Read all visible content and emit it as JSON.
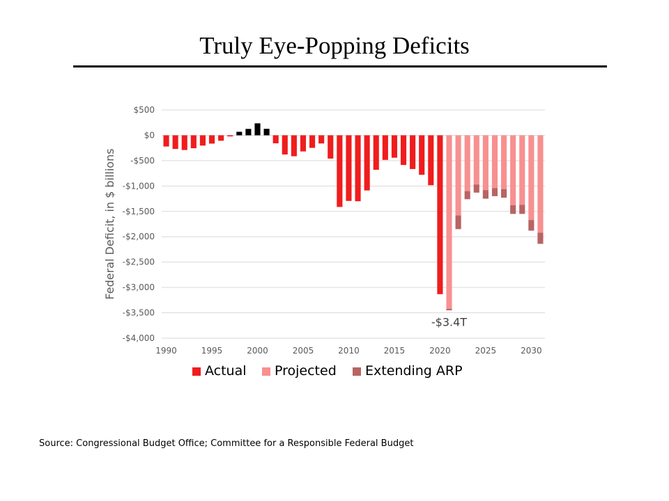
{
  "title": "Truly Eye-Popping Deficits",
  "source": "Source: Congressional Budget Office; Committee for a Responsible Federal Budget",
  "colors": {
    "actual": "#f01d1d",
    "surplus": "#000000",
    "projected": "#f89090",
    "extending_arp": "#b86464",
    "grid": "#d9d9d9",
    "axis_text": "#595959"
  },
  "chart_data": {
    "type": "bar",
    "stacked": true,
    "ylabel": "Federal Deficit, in $ billions",
    "ylim": [
      -4000,
      500
    ],
    "yticks": [
      500,
      0,
      -500,
      -1000,
      -1500,
      -2000,
      -2500,
      -3000,
      -3500,
      -4000
    ],
    "ytick_labels": [
      "$500",
      "$0",
      "-$500",
      "-$1,000",
      "-$1,500",
      "-$2,000",
      "-$2,500",
      "-$3,000",
      "-$3,500",
      "-$4,000"
    ],
    "xticks": [
      1990,
      1995,
      2000,
      2005,
      2010,
      2015,
      2020,
      2025,
      2030
    ],
    "x": [
      1990,
      1991,
      1992,
      1993,
      1994,
      1995,
      1996,
      1997,
      1998,
      1999,
      2000,
      2001,
      2002,
      2003,
      2004,
      2005,
      2006,
      2007,
      2008,
      2009,
      2010,
      2011,
      2012,
      2013,
      2014,
      2015,
      2016,
      2017,
      2018,
      2019,
      2020,
      2021,
      2022,
      2023,
      2024,
      2025,
      2026,
      2027,
      2028,
      2029,
      2030,
      2031
    ],
    "grid": true,
    "legend_position": "bottom",
    "series": [
      {
        "name": "Actual",
        "values": [
          -221,
          -269,
          -290,
          -255,
          -203,
          -164,
          -107,
          -22,
          69,
          126,
          236,
          128,
          -158,
          -378,
          -413,
          -318,
          -248,
          -161,
          -459,
          -1413,
          -1294,
          -1300,
          -1087,
          -680,
          -485,
          -442,
          -585,
          -665,
          -779,
          -984,
          -3132,
          null,
          null,
          null,
          null,
          null,
          null,
          null,
          null,
          null,
          null,
          null
        ]
      },
      {
        "name": "Projected",
        "values": [
          null,
          null,
          null,
          null,
          null,
          null,
          null,
          null,
          null,
          null,
          null,
          null,
          null,
          null,
          null,
          null,
          null,
          null,
          null,
          null,
          null,
          null,
          null,
          null,
          null,
          null,
          null,
          null,
          null,
          null,
          null,
          -3420,
          -1580,
          -1100,
          -970,
          -1080,
          -1040,
          -1060,
          -1380,
          -1370,
          -1670,
          -1920
        ]
      },
      {
        "name": "Extending ARP",
        "values": [
          null,
          null,
          null,
          null,
          null,
          null,
          null,
          null,
          null,
          null,
          null,
          null,
          null,
          null,
          null,
          null,
          null,
          null,
          null,
          null,
          null,
          null,
          null,
          null,
          null,
          null,
          null,
          null,
          null,
          null,
          null,
          -30,
          -270,
          -160,
          -160,
          -170,
          -160,
          -170,
          -170,
          -180,
          -210,
          -220
        ]
      }
    ],
    "annotations": [
      {
        "x": 2021,
        "text": "-$3.4T"
      }
    ]
  }
}
